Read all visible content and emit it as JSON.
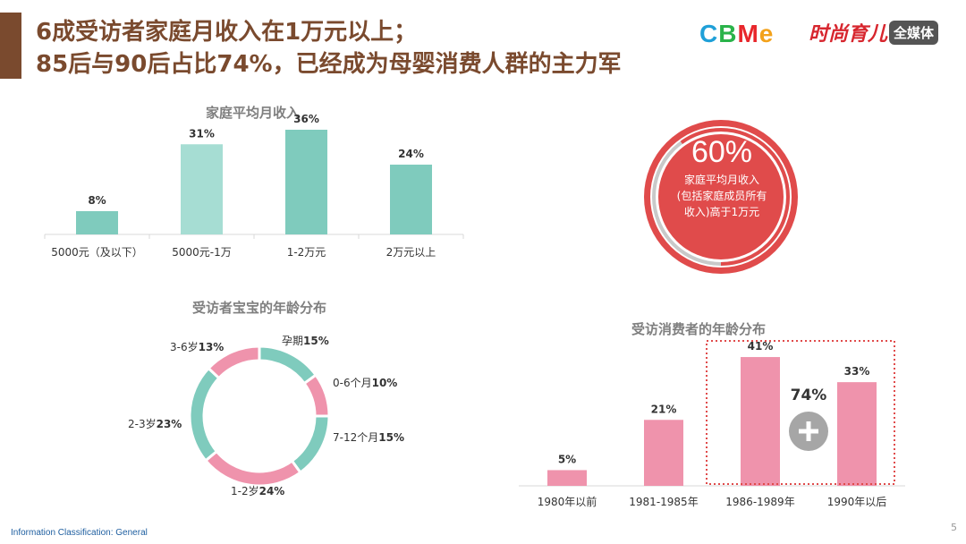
{
  "header": {
    "title_line1": "6成受访者家庭月收入在1万元以上；",
    "title_line2": "85后与90后占比74%，已经成为母婴消费人群的主力军",
    "logo_cbme": [
      "C",
      "B",
      "M",
      "e"
    ],
    "logo_cbme_colors": [
      "#1fa0d8",
      "#2ab34a",
      "#e8262b",
      "#f3a21b"
    ],
    "logo_right_main": "时尚育儿",
    "logo_right_badge": "全媒体"
  },
  "stat_circle": {
    "value": "60%",
    "line1": "家庭平均月收入",
    "line2": "(包括家庭成员所有",
    "line3": "收入)高于1万元",
    "fraction": 0.6,
    "color": "#e04b4b",
    "ring_color": "#c9c9c9"
  },
  "chart_data": [
    {
      "type": "bar",
      "title": "家庭平均月收入",
      "categories": [
        "5000元（及以下）",
        "5000元-1万",
        "1-2万元",
        "2万元以上"
      ],
      "values": [
        8,
        31,
        36,
        24
      ],
      "labels": [
        "8%",
        "31%",
        "36%",
        "24%"
      ],
      "colors": [
        "#7fcbbd",
        "#a6ddd3",
        "#7fcbbd",
        "#7fcbbd"
      ],
      "ylim": [
        0,
        40
      ]
    },
    {
      "type": "pie",
      "title": "受访者宝宝的年龄分布",
      "categories": [
        "孕期",
        "0-6个月",
        "7-12个月",
        "1-2岁",
        "2-3岁",
        "3-6岁"
      ],
      "values": [
        15,
        10,
        15,
        24,
        23,
        13
      ],
      "labels": [
        "15%",
        "10%",
        "15%",
        "24%",
        "23%",
        "13%"
      ],
      "colors": [
        "#7fcbbd",
        "#ef93ac",
        "#7fcbbd",
        "#ef93ac",
        "#7fcbbd",
        "#ef93ac"
      ]
    },
    {
      "type": "bar",
      "title": "受访消费者的年龄分布",
      "categories": [
        "1980年以前",
        "1981-1985年",
        "1986-1989年",
        "1990年以后"
      ],
      "values": [
        5,
        21,
        41,
        33
      ],
      "labels": [
        "5%",
        "21%",
        "41%",
        "33%"
      ],
      "color": "#ef93ac",
      "ylim": [
        0,
        45
      ],
      "annotation": "74%",
      "highlight_color": "#e04b4b"
    }
  ],
  "footer": {
    "classification": "Information Classification: General",
    "page": "5"
  }
}
